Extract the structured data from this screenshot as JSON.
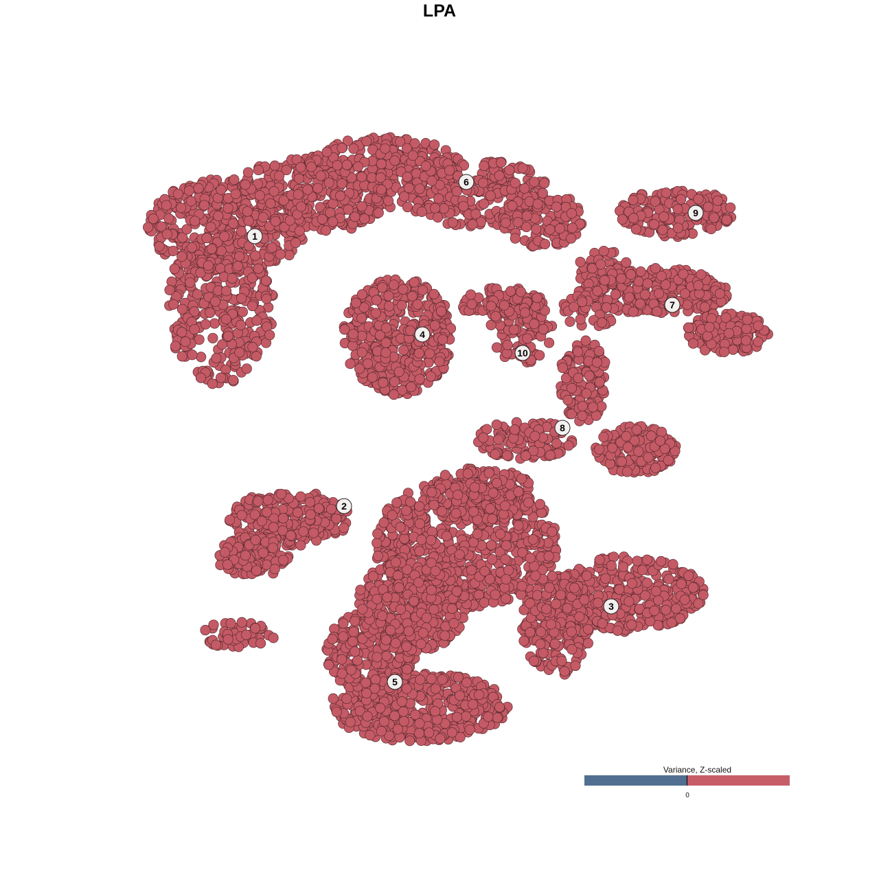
{
  "chart_data": {
    "type": "scatter",
    "title": "LPA",
    "xlabel": "",
    "ylabel": "",
    "grid": false,
    "axes_visible": false,
    "point_color": "#c45a65",
    "point_edge_color": "#5b2b30",
    "cluster_labels": [
      "1",
      "2",
      "3",
      "4",
      "5",
      "6",
      "7",
      "8",
      "9",
      "10"
    ],
    "legend": {
      "title": "Variance, Z-scaled",
      "placement": "bottom-right",
      "type": "colorbar",
      "low_color": "#506f91",
      "high_color": "#c65e68",
      "ticks": [
        "0"
      ]
    }
  }
}
